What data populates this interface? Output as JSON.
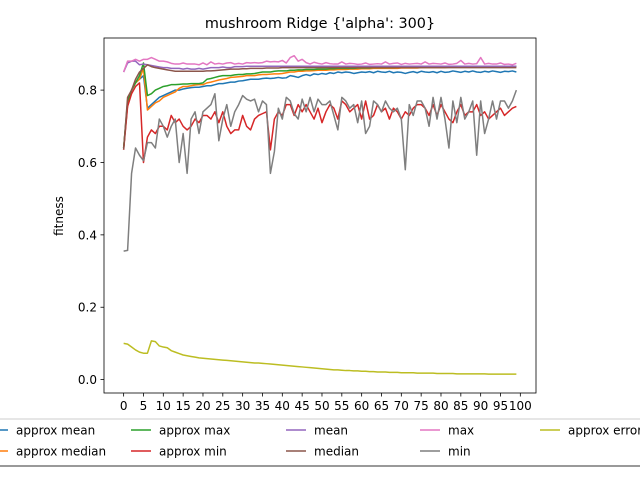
{
  "chart_data": {
    "type": "line",
    "title": "mushroom Ridge {'alpha': 300}",
    "xlabel": "",
    "ylabel": "fitness",
    "xlim": [
      -4.95,
      103.95
    ],
    "ylim": [
      -0.037,
      0.944
    ],
    "x_ticks": [
      0,
      5,
      10,
      15,
      20,
      25,
      30,
      35,
      40,
      45,
      50,
      55,
      60,
      65,
      70,
      75,
      80,
      85,
      90,
      95,
      100
    ],
    "y_ticks": [
      0.0,
      0.2,
      0.4,
      0.6,
      0.8
    ],
    "y_tick_labels": [
      "0.0",
      "0.2",
      "0.4",
      "0.6",
      "0.8"
    ],
    "grid": false,
    "legend_position": "bottom-center",
    "x": [
      0,
      1,
      2,
      3,
      4,
      5,
      6,
      7,
      8,
      9,
      10,
      11,
      12,
      13,
      14,
      15,
      16,
      17,
      18,
      19,
      20,
      21,
      22,
      23,
      24,
      25,
      26,
      27,
      28,
      29,
      30,
      31,
      32,
      33,
      34,
      35,
      36,
      37,
      38,
      39,
      40,
      41,
      42,
      43,
      44,
      45,
      46,
      47,
      48,
      49,
      50,
      51,
      52,
      53,
      54,
      55,
      56,
      57,
      58,
      59,
      60,
      61,
      62,
      63,
      64,
      65,
      66,
      67,
      68,
      69,
      70,
      71,
      72,
      73,
      74,
      75,
      76,
      77,
      78,
      79,
      80,
      81,
      82,
      83,
      84,
      85,
      86,
      87,
      88,
      89,
      90,
      91,
      92,
      93,
      94,
      95,
      96,
      97,
      98,
      99
    ],
    "series": [
      {
        "name": "approx mean",
        "color": "#1f77b4",
        "values": [
          0.64,
          0.76,
          0.8,
          0.82,
          0.83,
          0.84,
          0.75,
          0.76,
          0.77,
          0.78,
          0.785,
          0.79,
          0.795,
          0.8,
          0.8,
          0.803,
          0.805,
          0.807,
          0.808,
          0.808,
          0.81,
          0.812,
          0.812,
          0.815,
          0.818,
          0.818,
          0.82,
          0.822,
          0.822,
          0.825,
          0.826,
          0.828,
          0.83,
          0.83,
          0.83,
          0.832,
          0.833,
          0.832,
          0.833,
          0.835,
          0.833,
          0.834,
          0.84,
          0.838,
          0.835,
          0.84,
          0.843,
          0.84,
          0.845,
          0.843,
          0.846,
          0.844,
          0.848,
          0.846,
          0.85,
          0.848,
          0.85,
          0.849,
          0.846,
          0.848,
          0.85,
          0.849,
          0.851,
          0.848,
          0.852,
          0.85,
          0.849,
          0.852,
          0.848,
          0.85,
          0.849,
          0.846,
          0.849,
          0.851,
          0.848,
          0.852,
          0.85,
          0.849,
          0.851,
          0.848,
          0.852,
          0.849,
          0.85,
          0.853,
          0.851,
          0.849,
          0.852,
          0.85,
          0.853,
          0.85,
          0.849,
          0.852,
          0.85,
          0.853,
          0.851,
          0.849,
          0.852,
          0.851,
          0.853,
          0.85
        ]
      },
      {
        "name": "approx median",
        "color": "#ff7f0e",
        "values": [
          0.64,
          0.76,
          0.8,
          0.82,
          0.83,
          0.86,
          0.745,
          0.755,
          0.765,
          0.77,
          0.78,
          0.785,
          0.79,
          0.795,
          0.805,
          0.81,
          0.81,
          0.812,
          0.814,
          0.815,
          0.815,
          0.82,
          0.822,
          0.825,
          0.828,
          0.83,
          0.832,
          0.835,
          0.836,
          0.837,
          0.838,
          0.84,
          0.84,
          0.84,
          0.842,
          0.843,
          0.843,
          0.844,
          0.845,
          0.845,
          0.846,
          0.848,
          0.85,
          0.85,
          0.852,
          0.852,
          0.853,
          0.853,
          0.854,
          0.855,
          0.855,
          0.855,
          0.856,
          0.856,
          0.857,
          0.857,
          0.857,
          0.858,
          0.858,
          0.858,
          0.859,
          0.859,
          0.859,
          0.86,
          0.86,
          0.86,
          0.86,
          0.86,
          0.86,
          0.86,
          0.861,
          0.861,
          0.861,
          0.861,
          0.861,
          0.862,
          0.862,
          0.862,
          0.862,
          0.862,
          0.862,
          0.862,
          0.863,
          0.863,
          0.863,
          0.863,
          0.863,
          0.863,
          0.863,
          0.863,
          0.863,
          0.863,
          0.864,
          0.864,
          0.864,
          0.864,
          0.864,
          0.864,
          0.864,
          0.864
        ]
      },
      {
        "name": "approx max",
        "color": "#2ca02c",
        "values": [
          0.64,
          0.77,
          0.8,
          0.82,
          0.84,
          0.875,
          0.785,
          0.79,
          0.8,
          0.805,
          0.81,
          0.812,
          0.815,
          0.815,
          0.816,
          0.817,
          0.817,
          0.818,
          0.818,
          0.818,
          0.82,
          0.83,
          0.832,
          0.835,
          0.838,
          0.84,
          0.84,
          0.84,
          0.842,
          0.843,
          0.843,
          0.845,
          0.845,
          0.846,
          0.848,
          0.85,
          0.85,
          0.85,
          0.852,
          0.853,
          0.853,
          0.853,
          0.855,
          0.855,
          0.856,
          0.856,
          0.857,
          0.857,
          0.857,
          0.858,
          0.858,
          0.858,
          0.859,
          0.859,
          0.86,
          0.86,
          0.86,
          0.86,
          0.86,
          0.861,
          0.861,
          0.861,
          0.861,
          0.862,
          0.862,
          0.862,
          0.862,
          0.862,
          0.862,
          0.863,
          0.863,
          0.863,
          0.863,
          0.863,
          0.863,
          0.864,
          0.864,
          0.864,
          0.864,
          0.864,
          0.864,
          0.864,
          0.864,
          0.864,
          0.865,
          0.865,
          0.865,
          0.865,
          0.865,
          0.865,
          0.865,
          0.865,
          0.865,
          0.865,
          0.865,
          0.865,
          0.866,
          0.866,
          0.866,
          0.866
        ]
      },
      {
        "name": "approx min",
        "color": "#d62728",
        "values": [
          0.635,
          0.755,
          0.79,
          0.81,
          0.82,
          0.6,
          0.67,
          0.69,
          0.68,
          0.7,
          0.7,
          0.69,
          0.73,
          0.71,
          0.72,
          0.7,
          0.69,
          0.7,
          0.72,
          0.71,
          0.73,
          0.73,
          0.72,
          0.74,
          0.71,
          0.74,
          0.7,
          0.68,
          0.69,
          0.69,
          0.73,
          0.7,
          0.69,
          0.72,
          0.73,
          0.735,
          0.74,
          0.635,
          0.72,
          0.74,
          0.73,
          0.76,
          0.76,
          0.73,
          0.76,
          0.74,
          0.76,
          0.74,
          0.72,
          0.75,
          0.71,
          0.74,
          0.76,
          0.75,
          0.72,
          0.77,
          0.76,
          0.74,
          0.75,
          0.76,
          0.72,
          0.77,
          0.72,
          0.73,
          0.76,
          0.74,
          0.75,
          0.72,
          0.75,
          0.74,
          0.72,
          0.74,
          0.73,
          0.75,
          0.76,
          0.76,
          0.75,
          0.73,
          0.76,
          0.73,
          0.76,
          0.74,
          0.72,
          0.71,
          0.74,
          0.76,
          0.73,
          0.74,
          0.74,
          0.76,
          0.73,
          0.74,
          0.72,
          0.73,
          0.74,
          0.75,
          0.73,
          0.74,
          0.75,
          0.755
        ]
      },
      {
        "name": "mean",
        "color": "#9467bd",
        "values": [
          0.85,
          0.875,
          0.88,
          0.88,
          0.87,
          0.872,
          0.87,
          0.868,
          0.866,
          0.864,
          0.862,
          0.862,
          0.86,
          0.86,
          0.86,
          0.858,
          0.86,
          0.858,
          0.858,
          0.86,
          0.858,
          0.86,
          0.862,
          0.862,
          0.862,
          0.864,
          0.862,
          0.862,
          0.865,
          0.865,
          0.865,
          0.866,
          0.866,
          0.866,
          0.866,
          0.866,
          0.866,
          0.866,
          0.866,
          0.866,
          0.866,
          0.866,
          0.866,
          0.866,
          0.866,
          0.866,
          0.866,
          0.866,
          0.866,
          0.866,
          0.866,
          0.866,
          0.866,
          0.866,
          0.866,
          0.866,
          0.866,
          0.866,
          0.866,
          0.866,
          0.866,
          0.866,
          0.866,
          0.866,
          0.866,
          0.866,
          0.866,
          0.866,
          0.866,
          0.866,
          0.866,
          0.866,
          0.866,
          0.866,
          0.866,
          0.866,
          0.866,
          0.866,
          0.866,
          0.866,
          0.866,
          0.866,
          0.866,
          0.866,
          0.866,
          0.866,
          0.866,
          0.866,
          0.866,
          0.866,
          0.866,
          0.866,
          0.866,
          0.866,
          0.866,
          0.866,
          0.866,
          0.866,
          0.866,
          0.866
        ]
      },
      {
        "name": "median",
        "color": "#8c564b",
        "values": [
          0.636,
          0.78,
          0.8,
          0.83,
          0.85,
          0.86,
          0.87,
          0.865,
          0.862,
          0.86,
          0.858,
          0.856,
          0.854,
          0.852,
          0.852,
          0.852,
          0.852,
          0.852,
          0.852,
          0.852,
          0.852,
          0.853,
          0.853,
          0.854,
          0.855,
          0.856,
          0.857,
          0.858,
          0.858,
          0.858,
          0.859,
          0.859,
          0.86,
          0.86,
          0.86,
          0.86,
          0.861,
          0.861,
          0.861,
          0.861,
          0.862,
          0.862,
          0.862,
          0.862,
          0.862,
          0.862,
          0.862,
          0.862,
          0.862,
          0.862,
          0.862,
          0.862,
          0.862,
          0.862,
          0.862,
          0.862,
          0.862,
          0.862,
          0.862,
          0.862,
          0.862,
          0.862,
          0.862,
          0.862,
          0.862,
          0.862,
          0.862,
          0.862,
          0.862,
          0.862,
          0.862,
          0.862,
          0.862,
          0.862,
          0.862,
          0.862,
          0.862,
          0.862,
          0.862,
          0.862,
          0.862,
          0.862,
          0.862,
          0.862,
          0.862,
          0.862,
          0.862,
          0.862,
          0.862,
          0.862,
          0.862,
          0.862,
          0.862,
          0.862,
          0.862,
          0.862,
          0.862,
          0.862,
          0.862,
          0.862
        ]
      },
      {
        "name": "max",
        "color": "#e377c2",
        "values": [
          0.85,
          0.88,
          0.88,
          0.885,
          0.88,
          0.885,
          0.885,
          0.89,
          0.885,
          0.88,
          0.88,
          0.878,
          0.874,
          0.872,
          0.872,
          0.875,
          0.872,
          0.872,
          0.872,
          0.87,
          0.875,
          0.87,
          0.878,
          0.872,
          0.874,
          0.872,
          0.875,
          0.876,
          0.872,
          0.874,
          0.872,
          0.876,
          0.875,
          0.876,
          0.875,
          0.876,
          0.88,
          0.878,
          0.879,
          0.878,
          0.882,
          0.875,
          0.89,
          0.895,
          0.88,
          0.885,
          0.876,
          0.872,
          0.877,
          0.874,
          0.872,
          0.876,
          0.873,
          0.872,
          0.872,
          0.878,
          0.872,
          0.874,
          0.873,
          0.871,
          0.872,
          0.875,
          0.871,
          0.872,
          0.873,
          0.872,
          0.878,
          0.872,
          0.874,
          0.875,
          0.871,
          0.874,
          0.872,
          0.873,
          0.874,
          0.872,
          0.878,
          0.872,
          0.874,
          0.873,
          0.872,
          0.875,
          0.871,
          0.872,
          0.874,
          0.882,
          0.872,
          0.874,
          0.872,
          0.873,
          0.89,
          0.872,
          0.874,
          0.872,
          0.872,
          0.875,
          0.871,
          0.872,
          0.87,
          0.874
        ]
      },
      {
        "name": "min",
        "color": "#7f7f7f",
        "values": [
          0.355,
          0.357,
          0.57,
          0.64,
          0.62,
          0.605,
          0.655,
          0.655,
          0.64,
          0.72,
          0.7,
          0.67,
          0.7,
          0.72,
          0.6,
          0.68,
          0.57,
          0.72,
          0.74,
          0.68,
          0.74,
          0.75,
          0.76,
          0.79,
          0.66,
          0.72,
          0.76,
          0.7,
          0.74,
          0.76,
          0.785,
          0.775,
          0.77,
          0.775,
          0.74,
          0.77,
          0.76,
          0.57,
          0.63,
          0.75,
          0.72,
          0.78,
          0.77,
          0.735,
          0.72,
          0.775,
          0.74,
          0.78,
          0.74,
          0.775,
          0.76,
          0.76,
          0.77,
          0.73,
          0.69,
          0.78,
          0.77,
          0.75,
          0.76,
          0.71,
          0.77,
          0.68,
          0.7,
          0.77,
          0.76,
          0.74,
          0.77,
          0.75,
          0.74,
          0.75,
          0.72,
          0.58,
          0.76,
          0.73,
          0.77,
          0.77,
          0.75,
          0.7,
          0.78,
          0.72,
          0.78,
          0.72,
          0.64,
          0.77,
          0.71,
          0.78,
          0.72,
          0.74,
          0.77,
          0.62,
          0.77,
          0.68,
          0.72,
          0.77,
          0.72,
          0.77,
          0.77,
          0.75,
          0.77,
          0.8
        ]
      },
      {
        "name": "approx error",
        "color": "#bcbd22",
        "values": [
          0.1,
          0.098,
          0.09,
          0.082,
          0.076,
          0.073,
          0.073,
          0.107,
          0.105,
          0.093,
          0.09,
          0.088,
          0.08,
          0.076,
          0.072,
          0.068,
          0.066,
          0.064,
          0.062,
          0.06,
          0.059,
          0.058,
          0.057,
          0.056,
          0.055,
          0.054,
          0.053,
          0.052,
          0.051,
          0.05,
          0.049,
          0.048,
          0.047,
          0.046,
          0.046,
          0.045,
          0.044,
          0.043,
          0.042,
          0.041,
          0.04,
          0.039,
          0.038,
          0.037,
          0.036,
          0.035,
          0.034,
          0.033,
          0.032,
          0.031,
          0.03,
          0.029,
          0.028,
          0.027,
          0.027,
          0.026,
          0.025,
          0.025,
          0.024,
          0.024,
          0.023,
          0.023,
          0.022,
          0.022,
          0.021,
          0.021,
          0.021,
          0.02,
          0.02,
          0.02,
          0.019,
          0.019,
          0.019,
          0.019,
          0.018,
          0.018,
          0.018,
          0.018,
          0.018,
          0.017,
          0.017,
          0.017,
          0.017,
          0.017,
          0.016,
          0.016,
          0.016,
          0.016,
          0.016,
          0.016,
          0.016,
          0.016,
          0.015,
          0.015,
          0.015,
          0.015,
          0.015,
          0.015,
          0.015,
          0.015
        ]
      }
    ]
  }
}
